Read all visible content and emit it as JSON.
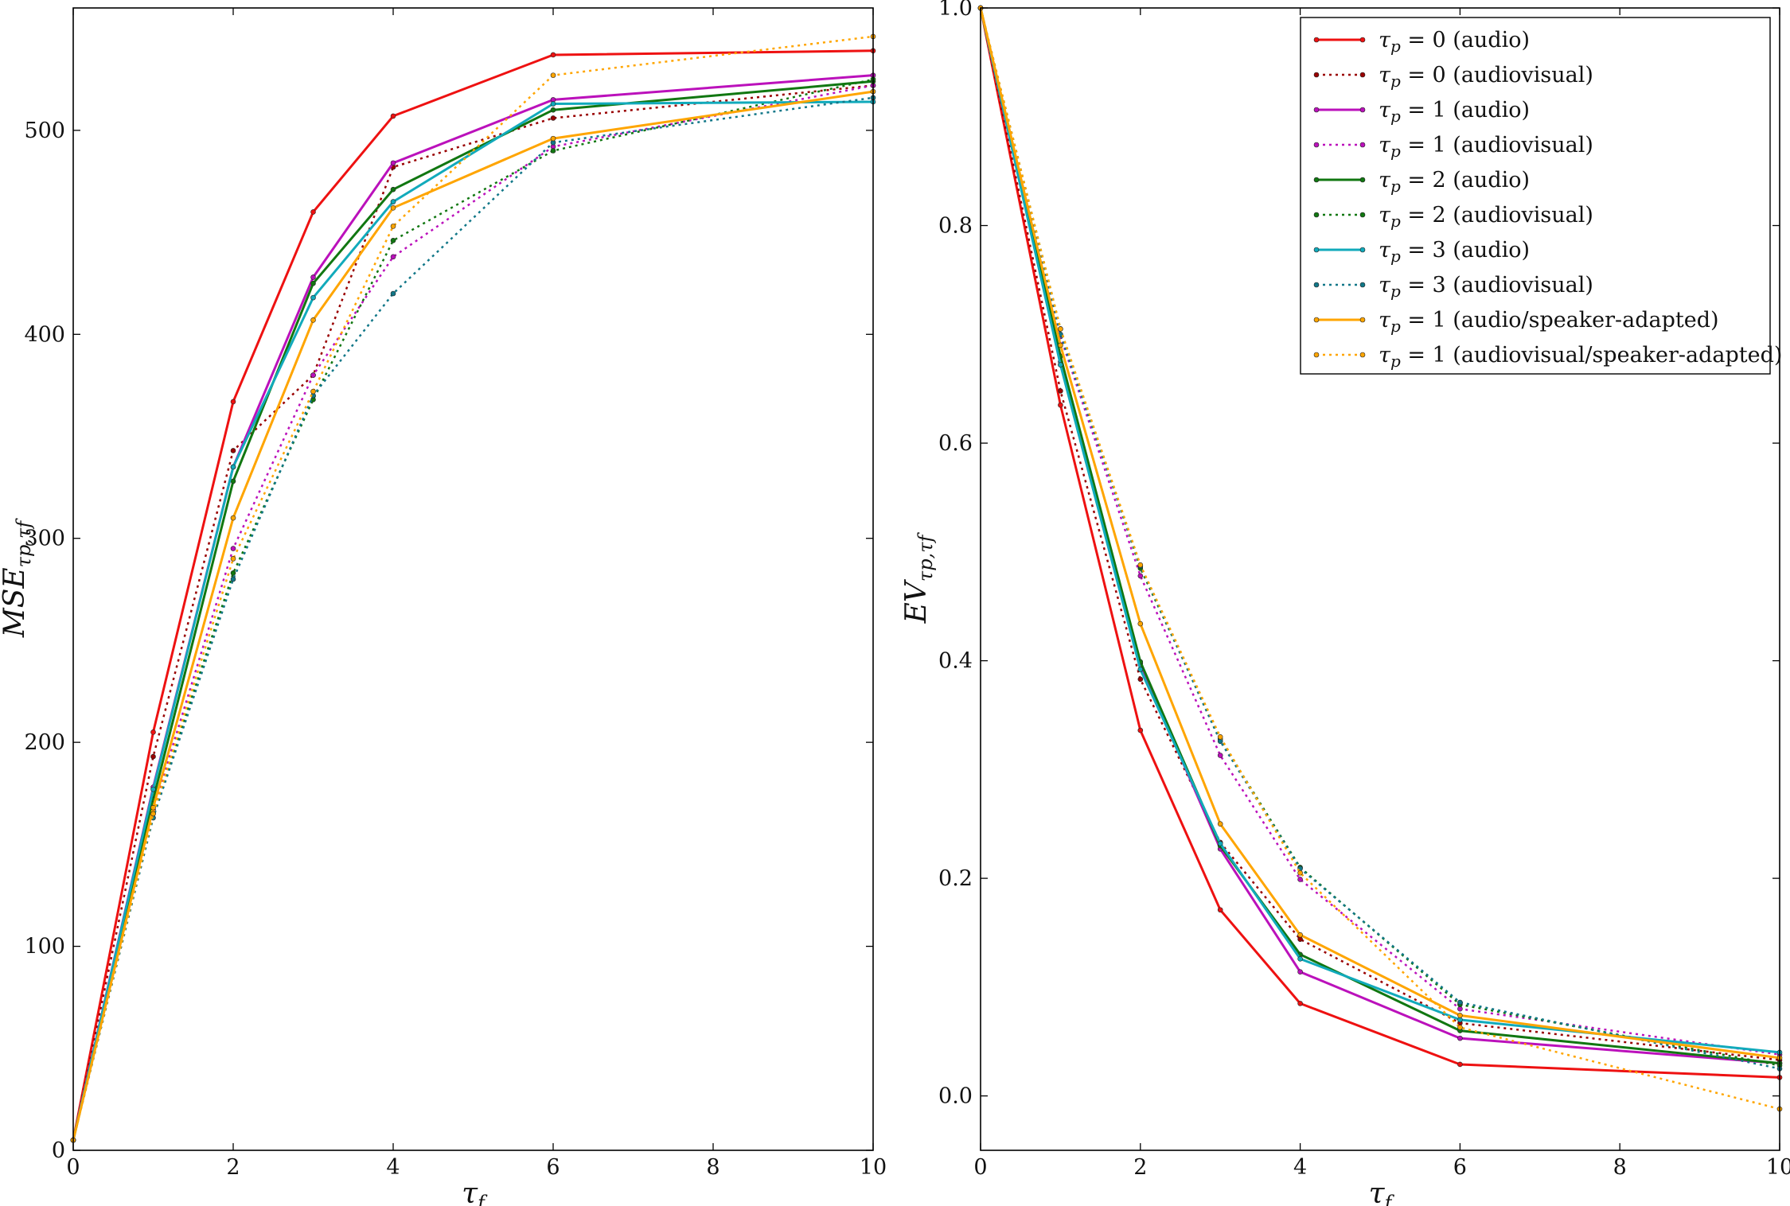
{
  "colors": {
    "red": "#ee1111",
    "darkred": "#990000",
    "magenta": "#bb11bb",
    "green": "#117711",
    "cyan": "#11aabb",
    "teal": "#117788",
    "orange": "#ffa500",
    "darkorange": "#cc8800"
  },
  "legend_labels": [
    {
      "symbol": "τ",
      "sub": "p",
      "rest": " = 0 (audio)"
    },
    {
      "symbol": "τ",
      "sub": "p",
      "rest": " = 0 (audiovisual)"
    },
    {
      "symbol": "τ",
      "sub": "p",
      "rest": " = 1 (audio)"
    },
    {
      "symbol": "τ",
      "sub": "p",
      "rest": " = 1 (audiovisual)"
    },
    {
      "symbol": "τ",
      "sub": "p",
      "rest": " = 2 (audio)"
    },
    {
      "symbol": "τ",
      "sub": "p",
      "rest": " = 2 (audiovisual)"
    },
    {
      "symbol": "τ",
      "sub": "p",
      "rest": " = 3 (audio)"
    },
    {
      "symbol": "τ",
      "sub": "p",
      "rest": " = 3 (audiovisual)"
    },
    {
      "symbol": "τ",
      "sub": "p",
      "rest": " = 1 (audio/speaker-adapted)"
    },
    {
      "symbol": "τ",
      "sub": "p",
      "rest": " = 1 (audiovisual/speaker-adapted)"
    }
  ],
  "chart_data": [
    {
      "type": "line",
      "xlabel": {
        "main": "τ",
        "sub": "f"
      },
      "ylabel": {
        "main": "MSE",
        "sub": "τp,τf"
      },
      "xlim": [
        0,
        10
      ],
      "ylim": [
        0,
        560
      ],
      "xticks": [
        0,
        2,
        4,
        6,
        8,
        10
      ],
      "yticks": [
        0,
        100,
        200,
        300,
        400,
        500
      ],
      "x": [
        0,
        1,
        2,
        3,
        4,
        6,
        10
      ],
      "grid": false,
      "series": [
        {
          "legend_index": 0,
          "color_key": "red",
          "dash": false,
          "values": [
            5,
            205,
            367,
            460,
            507,
            537,
            539
          ]
        },
        {
          "legend_index": 1,
          "color_key": "darkred",
          "dash": true,
          "values": [
            5,
            193,
            343,
            380,
            482,
            506,
            522
          ]
        },
        {
          "legend_index": 2,
          "color_key": "magenta",
          "dash": false,
          "values": [
            5,
            178,
            335,
            428,
            484,
            515,
            527
          ]
        },
        {
          "legend_index": 3,
          "color_key": "magenta",
          "dash": true,
          "values": [
            5,
            167,
            295,
            380,
            438,
            492,
            522
          ]
        },
        {
          "legend_index": 4,
          "color_key": "green",
          "dash": false,
          "values": [
            5,
            172,
            328,
            425,
            471,
            510,
            524
          ]
        },
        {
          "legend_index": 5,
          "color_key": "green",
          "dash": true,
          "values": [
            5,
            165,
            283,
            368,
            446,
            490,
            525
          ]
        },
        {
          "legend_index": 6,
          "color_key": "cyan",
          "dash": false,
          "values": [
            5,
            177,
            335,
            418,
            465,
            513,
            514
          ]
        },
        {
          "legend_index": 7,
          "color_key": "teal",
          "dash": true,
          "values": [
            5,
            163,
            280,
            370,
            420,
            494,
            516
          ]
        },
        {
          "legend_index": 8,
          "color_key": "orange",
          "dash": false,
          "values": [
            5,
            168,
            310,
            407,
            462,
            496,
            519
          ]
        },
        {
          "legend_index": 9,
          "color_key": "orange",
          "dash": true,
          "values": [
            5,
            165,
            290,
            372,
            453,
            527,
            546
          ]
        }
      ]
    },
    {
      "type": "line",
      "xlabel": {
        "main": "τ",
        "sub": "f"
      },
      "ylabel": {
        "main": "EV",
        "sub": "τp,τf"
      },
      "xlim": [
        0,
        10
      ],
      "ylim": [
        -0.05,
        1.0
      ],
      "xticks": [
        0,
        2,
        4,
        6,
        8,
        10
      ],
      "yticks": [
        0.0,
        0.2,
        0.4,
        0.6,
        0.8,
        1.0
      ],
      "x": [
        0,
        1,
        2,
        3,
        4,
        6,
        10
      ],
      "grid": false,
      "legend_position": "top-right",
      "series": [
        {
          "legend_index": 0,
          "color_key": "red",
          "dash": false,
          "values": [
            1.0,
            0.635,
            0.336,
            0.171,
            0.085,
            0.029,
            0.017
          ]
        },
        {
          "legend_index": 1,
          "color_key": "darkred",
          "dash": true,
          "values": [
            1.0,
            0.648,
            0.383,
            0.233,
            0.144,
            0.067,
            0.033
          ]
        },
        {
          "legend_index": 2,
          "color_key": "magenta",
          "dash": false,
          "values": [
            1.0,
            0.675,
            0.397,
            0.227,
            0.114,
            0.053,
            0.03
          ]
        },
        {
          "legend_index": 3,
          "color_key": "magenta",
          "dash": true,
          "values": [
            1.0,
            0.698,
            0.478,
            0.313,
            0.199,
            0.08,
            0.038
          ]
        },
        {
          "legend_index": 4,
          "color_key": "green",
          "dash": false,
          "values": [
            1.0,
            0.68,
            0.399,
            0.23,
            0.13,
            0.06,
            0.03
          ]
        },
        {
          "legend_index": 5,
          "color_key": "green",
          "dash": true,
          "values": [
            1.0,
            0.705,
            0.485,
            0.328,
            0.21,
            0.084,
            0.028
          ]
        },
        {
          "legend_index": 6,
          "color_key": "cyan",
          "dash": false,
          "values": [
            1.0,
            0.672,
            0.392,
            0.232,
            0.126,
            0.07,
            0.04
          ]
        },
        {
          "legend_index": 7,
          "color_key": "teal",
          "dash": true,
          "values": [
            1.0,
            0.7,
            0.487,
            0.326,
            0.209,
            0.086,
            0.025
          ]
        },
        {
          "legend_index": 8,
          "color_key": "orange",
          "dash": false,
          "values": [
            1.0,
            0.69,
            0.434,
            0.25,
            0.148,
            0.074,
            0.035
          ]
        },
        {
          "legend_index": 9,
          "color_key": "orange",
          "dash": true,
          "values": [
            1.0,
            0.705,
            0.488,
            0.33,
            0.205,
            0.063,
            -0.012
          ]
        }
      ]
    }
  ]
}
